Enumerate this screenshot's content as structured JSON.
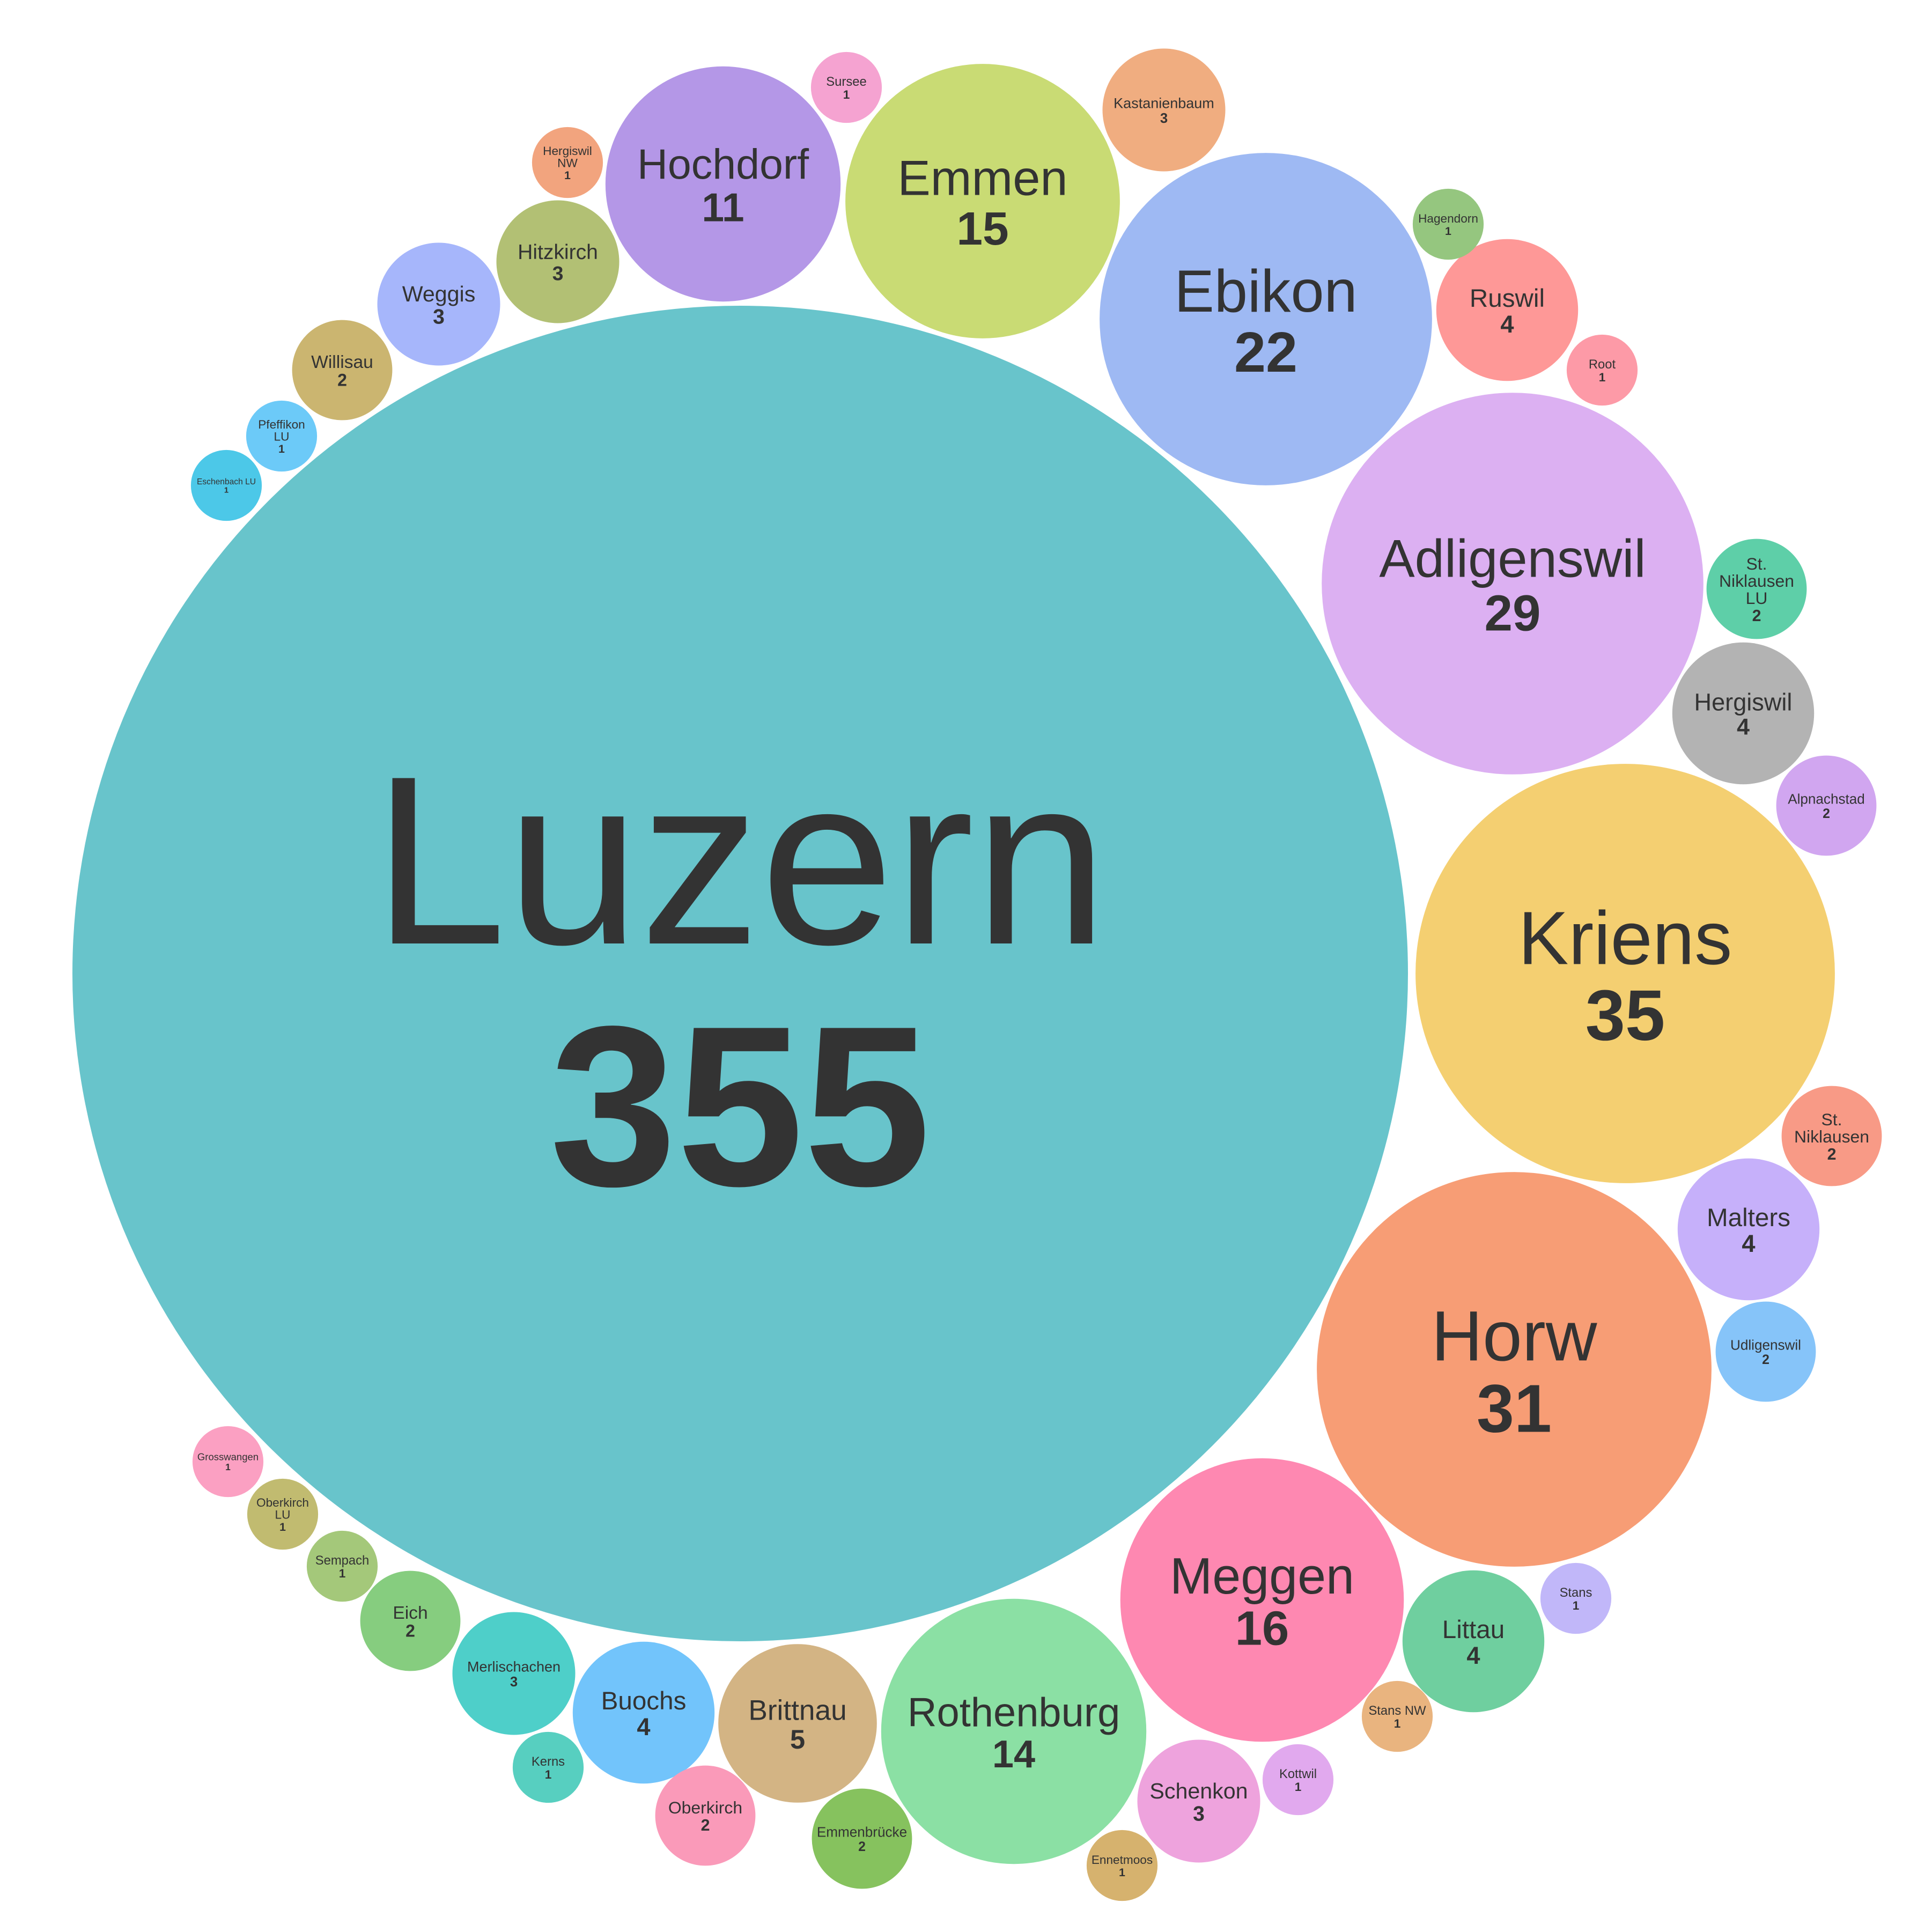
{
  "chart_data": {
    "type": "bubble",
    "title": "",
    "value_unit": "",
    "bubbles": [
      {
        "name": "Luzern",
        "value": 355,
        "color": "#68c4cb"
      },
      {
        "name": "Kriens",
        "value": 35,
        "color": "#f4cf71"
      },
      {
        "name": "Horw",
        "value": 31,
        "color": "#f79d75"
      },
      {
        "name": "Adligenswil",
        "value": 29,
        "color": "#dcb0f2"
      },
      {
        "name": "Ebikon",
        "value": 22,
        "color": "#9eb9f3"
      },
      {
        "name": "Meggen",
        "value": 16,
        "color": "#fe88b1"
      },
      {
        "name": "Emmen",
        "value": 15,
        "color": "#c9db74"
      },
      {
        "name": "Rothenburg",
        "value": 14,
        "color": "#8be0a4"
      },
      {
        "name": "Hochdorf",
        "value": 11,
        "color": "#b497e7"
      },
      {
        "name": "Brittnau",
        "value": 5,
        "color": "#d3b484"
      },
      {
        "name": "Ruswil",
        "value": 4,
        "color": "#fe9897"
      },
      {
        "name": "Hergiswil",
        "value": 4,
        "color": "#b3b3b3"
      },
      {
        "name": "Malters",
        "value": 4,
        "color": "#c6b0fa"
      },
      {
        "name": "Littau",
        "value": 4,
        "color": "#6fcf9f"
      },
      {
        "name": "Buochs",
        "value": 4,
        "color": "#72c4fb"
      },
      {
        "name": "Weggis",
        "value": 3,
        "color": "#a6b6fb"
      },
      {
        "name": "Hitzkirch",
        "value": 3,
        "color": "#b2c074"
      },
      {
        "name": "Kastanienbaum",
        "value": 3,
        "color": "#f0ad80"
      },
      {
        "name": "Schenkon",
        "value": 3,
        "color": "#eea3dd"
      },
      {
        "name": "Merlischachen",
        "value": 3,
        "color": "#4ecfc9"
      },
      {
        "name": "Willisau",
        "value": 2,
        "color": "#cbb570"
      },
      {
        "name": "St. Niklausen LU",
        "value": 2,
        "color": "#5ecfa8"
      },
      {
        "name": "Alpnachstad",
        "value": 2,
        "color": "#d1a6f0"
      },
      {
        "name": "St. Niklausen",
        "value": 2,
        "color": "#f89a86"
      },
      {
        "name": "Udligenswil",
        "value": 2,
        "color": "#86c4f9"
      },
      {
        "name": "Eich",
        "value": 2,
        "color": "#86cd7f"
      },
      {
        "name": "Oberkirch",
        "value": 2,
        "color": "#fa9ab9"
      },
      {
        "name": "Emmenbrücke",
        "value": 2,
        "color": "#86c25e"
      },
      {
        "name": "Sursee",
        "value": 1,
        "color": "#f5a3d1"
      },
      {
        "name": "Hergiswil NW",
        "value": 1,
        "color": "#f2a47e"
      },
      {
        "name": "Pfeffikon LU",
        "value": 1,
        "color": "#6ccaf8"
      },
      {
        "name": "Eschenbach LU",
        "value": 1,
        "color": "#4cc8e8"
      },
      {
        "name": "Hagendorn",
        "value": 1,
        "color": "#95c67f"
      },
      {
        "name": "Root",
        "value": 1,
        "color": "#fd9aa7"
      },
      {
        "name": "Stans",
        "value": 1,
        "color": "#c1b7f9"
      },
      {
        "name": "Stans NW",
        "value": 1,
        "color": "#e9b47f"
      },
      {
        "name": "Kottwil",
        "value": 1,
        "color": "#e1a9ee"
      },
      {
        "name": "Ennetmoos",
        "value": 1,
        "color": "#d6b26e"
      },
      {
        "name": "Kerns",
        "value": 1,
        "color": "#57cfc0"
      },
      {
        "name": "Grosswangen",
        "value": 1,
        "color": "#fba0c2"
      },
      {
        "name": "Oberkirch LU",
        "value": 1,
        "color": "#c1bb70"
      },
      {
        "name": "Sempach",
        "value": 1,
        "color": "#a4c87a"
      }
    ]
  }
}
